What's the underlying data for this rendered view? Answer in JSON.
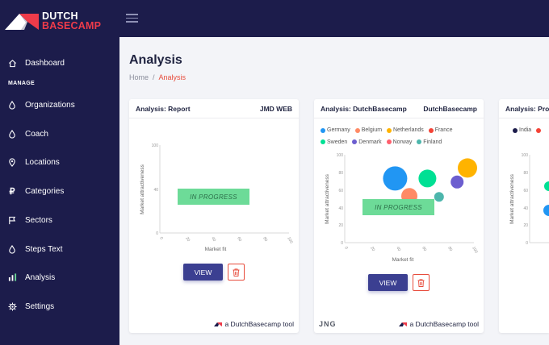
{
  "brand": {
    "line1": "DUTCH",
    "line2": "BASECAMP",
    "accent": "#ee3b4a",
    "bg": "#1c1c4b"
  },
  "nav": {
    "section_label": "MANAGE",
    "items": [
      {
        "label": "Dashboard",
        "icon": "home-icon"
      },
      {
        "label": "Organizations",
        "icon": "drop-icon"
      },
      {
        "label": "Coach",
        "icon": "drop-icon"
      },
      {
        "label": "Locations",
        "icon": "location-pin-icon"
      },
      {
        "label": "Categories",
        "icon": "ruble-icon"
      },
      {
        "label": "Sectors",
        "icon": "flag-icon"
      },
      {
        "label": "Steps Text",
        "icon": "drop-icon"
      },
      {
        "label": "Analysis",
        "icon": "bar-chart-icon"
      },
      {
        "label": "Settings",
        "icon": "gear-icon"
      }
    ]
  },
  "page": {
    "title": "Analysis",
    "breadcrumb_home": "Home",
    "breadcrumb_sep": "/",
    "breadcrumb_current": "Analysis"
  },
  "cards": [
    {
      "title": "Analysis: Report",
      "owner": "JMD WEB",
      "status": "IN PROGRESS",
      "view_label": "VIEW",
      "footer_left": "",
      "footer_tool": "a DutchBasecamp tool",
      "legend": []
    },
    {
      "title": "Analysis: DutchBasecamp",
      "owner": "DutchBasecamp",
      "status": "IN PROGRESS",
      "view_label": "VIEW",
      "footer_left": "JNG",
      "footer_tool": "a DutchBasecamp tool",
      "legend": [
        {
          "label": "Germany",
          "color": "#2196f3"
        },
        {
          "label": "Belgium",
          "color": "#ff8a65"
        },
        {
          "label": "Netherlands",
          "color": "#ffb300"
        },
        {
          "label": "France",
          "color": "#f44336"
        },
        {
          "label": "Sweden",
          "color": "#00e094"
        },
        {
          "label": "Denmark",
          "color": "#6c5ecf"
        },
        {
          "label": "Norway",
          "color": "#ff5f6d"
        },
        {
          "label": "Finland",
          "color": "#4db6ac"
        }
      ]
    },
    {
      "title": "Analysis: Proj",
      "owner": "",
      "legend": [
        {
          "label": "India",
          "color": "#1c1c4b"
        },
        {
          "label": "",
          "color": "#f44336"
        }
      ]
    }
  ],
  "chart_axes": {
    "xlabel": "Market fit",
    "ylabel": "Market attractiveness",
    "ticks": [
      "0",
      "20",
      "40",
      "60",
      "80",
      "100"
    ],
    "ylim": [
      0,
      100
    ],
    "xlim": [
      0,
      100
    ]
  },
  "chart_data": [
    {
      "type": "scatter",
      "xlabel": "Market fit",
      "ylabel": "Market attractiveness",
      "xlim": [
        0,
        100
      ],
      "ylim": [
        0,
        100
      ],
      "series": []
    },
    {
      "type": "scatter",
      "xlabel": "Market fit",
      "ylabel": "Market attractiveness",
      "xlim": [
        0,
        100
      ],
      "ylim": [
        0,
        100
      ],
      "series": [
        {
          "name": "Germany",
          "color": "#2196f3",
          "x": 39,
          "y": 73,
          "size": 15
        },
        {
          "name": "Belgium",
          "color": "#ff8a65",
          "x": 50,
          "y": 53,
          "size": 10
        },
        {
          "name": "Netherlands",
          "color": "#ffb300",
          "x": 95,
          "y": 85,
          "size": 12
        },
        {
          "name": "France",
          "color": "#f44336",
          "x": 64,
          "y": 42,
          "size": 6
        },
        {
          "name": "Sweden",
          "color": "#00e094",
          "x": 64,
          "y": 73,
          "size": 11
        },
        {
          "name": "Denmark",
          "color": "#6c5ecf",
          "x": 87,
          "y": 69,
          "size": 8
        },
        {
          "name": "Norway",
          "color": "#ff5f6d",
          "x": 56,
          "y": 45,
          "size": 5
        },
        {
          "name": "Finland",
          "color": "#4db6ac",
          "x": 73,
          "y": 52,
          "size": 6
        }
      ]
    }
  ]
}
